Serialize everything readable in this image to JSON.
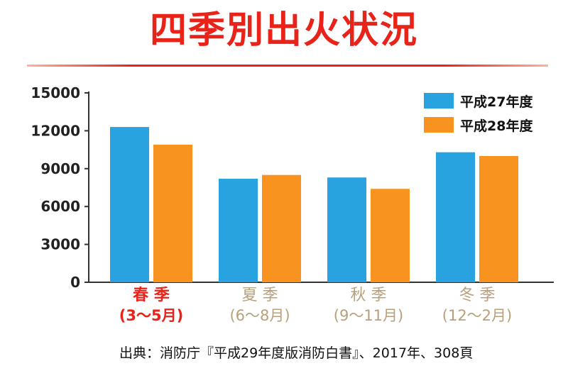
{
  "title": "四季別出火状況",
  "source": "出典：消防庁『平成29年度版消防白書』、2017年、308頁",
  "colors": {
    "title": "#e8231a",
    "series_1": "#29a3e0",
    "series_2": "#f7931e",
    "highlight_label": "#e8231a",
    "muted_label": "#b8a07a"
  },
  "chart_data": {
    "type": "bar",
    "categories": [
      {
        "name": "春 季",
        "range": "(3〜5月)",
        "highlight": true
      },
      {
        "name": "夏 季",
        "range": "(6〜8月)",
        "highlight": false
      },
      {
        "name": "秋 季",
        "range": "(9〜11月)",
        "highlight": false
      },
      {
        "name": "冬 季",
        "range": "(12〜2月)",
        "highlight": false
      }
    ],
    "series": [
      {
        "name": "平成27年度",
        "values": [
          12300,
          8200,
          8300,
          10300
        ]
      },
      {
        "name": "平成28年度",
        "values": [
          10900,
          8500,
          7400,
          10000
        ]
      }
    ],
    "ylim": [
      0,
      15000
    ],
    "yticks": [
      "0",
      "3000",
      "6000",
      "9000",
      "12000",
      "15000"
    ],
    "grid": false,
    "legend": "top-right"
  }
}
